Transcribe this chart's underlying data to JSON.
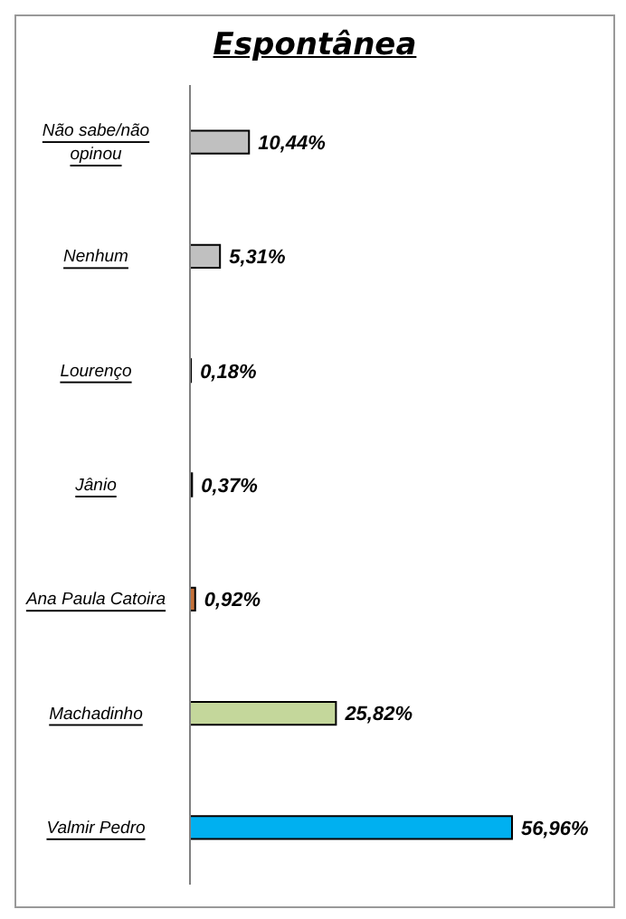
{
  "chart_data": {
    "type": "bar",
    "title": "Espontânea",
    "orientation": "horizontal",
    "categories": [
      "Não sabe/não opinou",
      "Nenhum",
      "Lourenço",
      "Jânio",
      "Ana Paula Catoira",
      "Machadinho",
      "Valmir Pedro"
    ],
    "values": [
      10.44,
      5.31,
      0.18,
      0.37,
      0.92,
      25.82,
      56.96
    ],
    "colors": [
      "#c0c0c0",
      "#c0c0c0",
      "#000000",
      "#000000",
      "#c5713a",
      "#c4d79b",
      "#00b0f0"
    ],
    "value_labels": [
      "10,44%",
      "5,31%",
      "0,18%",
      "0,37%",
      "0,92%",
      "25,82%",
      "56,96%"
    ]
  }
}
